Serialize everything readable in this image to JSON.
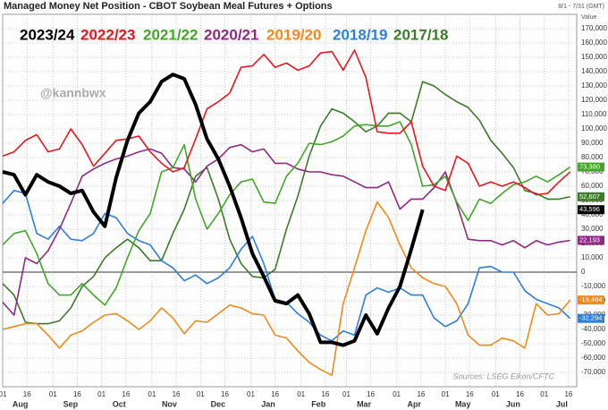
{
  "chart_data": {
    "type": "line",
    "title": "Managed Money Net Position - CBOT Soybean Meal Futures + Options",
    "range_note": "8/1 - 7/31 (GMT)",
    "axis_label": "Value",
    "watermark": "@kannbwx",
    "source": "Sources: LSEG Eikon/CFTC",
    "months": [
      "Aug",
      "Sep",
      "Oct",
      "Nov",
      "Dec",
      "Jan",
      "Feb",
      "Mar",
      "Apr",
      "May",
      "Jun",
      "Jul"
    ],
    "x": [
      0,
      7,
      14,
      21,
      28,
      35,
      42,
      49,
      56,
      63,
      70,
      77,
      84,
      91,
      98,
      105,
      112,
      119,
      126,
      133,
      140,
      147,
      154,
      161,
      168,
      175,
      182,
      189,
      196,
      203,
      210,
      217,
      224,
      231,
      238,
      245,
      252,
      259,
      266,
      273,
      280,
      287,
      294,
      301,
      308,
      315,
      322,
      329,
      336,
      343,
      350
    ],
    "xlim": [
      0,
      354
    ],
    "xticks": [
      {
        "value": 0,
        "label": "01"
      },
      {
        "value": 15,
        "label": "16"
      },
      {
        "value": 31,
        "label": "01"
      },
      {
        "value": 46,
        "label": "16"
      },
      {
        "value": 61,
        "label": "01"
      },
      {
        "value": 76,
        "label": "16"
      },
      {
        "value": 92,
        "label": "01"
      },
      {
        "value": 107,
        "label": "16"
      },
      {
        "value": 122,
        "label": "01"
      },
      {
        "value": 137,
        "label": "16"
      },
      {
        "value": 153,
        "label": "01"
      },
      {
        "value": 168,
        "label": "16"
      },
      {
        "value": 184,
        "label": "01"
      },
      {
        "value": 199,
        "label": "16"
      },
      {
        "value": 212,
        "label": "01"
      },
      {
        "value": 227,
        "label": "16"
      },
      {
        "value": 243,
        "label": "01"
      },
      {
        "value": 258,
        "label": "16"
      },
      {
        "value": 273,
        "label": "01"
      },
      {
        "value": 288,
        "label": "16"
      },
      {
        "value": 304,
        "label": "01"
      },
      {
        "value": 319,
        "label": "16"
      },
      {
        "value": 334,
        "label": "01"
      },
      {
        "value": 349,
        "label": "16"
      }
    ],
    "ylim": [
      -80000,
      180000
    ],
    "yticks": [
      {
        "value": -70000,
        "label": "-70,000"
      },
      {
        "value": -60000,
        "label": "-60,000"
      },
      {
        "value": -50000,
        "label": "-50,000"
      },
      {
        "value": -40000,
        "label": "-40,000"
      },
      {
        "value": -30000,
        "label": "-30,000"
      },
      {
        "value": -20000,
        "label": "-20,000"
      },
      {
        "value": -10000,
        "label": "-10,000"
      },
      0,
      {
        "value": 10000,
        "label": "10,000"
      },
      {
        "value": 20000,
        "label": "20,000"
      },
      {
        "value": 30000,
        "label": "30,000"
      },
      {
        "value": 40000,
        "label": "40,000"
      },
      {
        "value": 50000,
        "label": "50,000"
      },
      {
        "value": 60000,
        "label": "60,000"
      },
      {
        "value": 70000,
        "label": "70,000"
      },
      {
        "value": 80000,
        "label": "80,000"
      },
      {
        "value": 90000,
        "label": "90,000"
      },
      {
        "value": 100000,
        "label": "100,000"
      },
      {
        "value": 110000,
        "label": "110,000"
      },
      {
        "value": 120000,
        "label": "120,000"
      },
      {
        "value": 130000,
        "label": "130,000"
      },
      {
        "value": 140000,
        "label": "140,000"
      },
      {
        "value": 150000,
        "label": "150,000"
      },
      {
        "value": 160000,
        "label": "160,000"
      },
      {
        "value": 170000,
        "label": "170,000"
      }
    ],
    "grid": true,
    "series": [
      {
        "name": "2023/24",
        "color": "#000000",
        "width": 4,
        "end_label": "43,596",
        "values": [
          70000,
          68000,
          54000,
          68000,
          63000,
          60000,
          55000,
          57000,
          42000,
          32000,
          66000,
          92000,
          111000,
          119000,
          133000,
          138000,
          135000,
          117000,
          93000,
          79000,
          60000,
          38000,
          13000,
          -3000,
          -20000,
          -22000,
          -16000,
          -29000,
          -49000,
          -49000,
          -51000,
          -48000,
          -30000,
          -43000,
          -25000,
          -10000,
          16000,
          43596,
          null,
          null,
          null,
          null,
          null,
          null,
          null,
          null,
          null,
          null,
          null,
          null,
          null
        ]
      },
      {
        "name": "2022/23",
        "color": "#e8171f",
        "width": 1.6,
        "values": [
          81000,
          84000,
          92000,
          96000,
          84000,
          86000,
          100000,
          89000,
          74000,
          83000,
          92000,
          93000,
          95000,
          84000,
          76000,
          70000,
          73000,
          93000,
          114000,
          119000,
          125000,
          143000,
          144000,
          152000,
          143000,
          146000,
          141000,
          144000,
          153000,
          154000,
          141000,
          155000,
          136000,
          98000,
          97000,
          97000,
          105000,
          74000,
          60000,
          57000,
          81000,
          76000,
          60000,
          63000,
          60000,
          63000,
          59000,
          54000,
          55000,
          63000,
          70000
        ]
      },
      {
        "name": "2021/22",
        "color": "#45a52b",
        "width": 1.6,
        "end_label": "73,380",
        "values": [
          19000,
          27000,
          29000,
          13000,
          -8000,
          -16000,
          -16000,
          -8000,
          -16000,
          -23000,
          -11000,
          10000,
          29000,
          41000,
          70000,
          73000,
          89000,
          51000,
          30000,
          41000,
          54000,
          63000,
          65000,
          49000,
          48000,
          67000,
          76000,
          90000,
          89000,
          91000,
          95000,
          102000,
          103000,
          102000,
          102000,
          105000,
          89000,
          60000,
          61000,
          67000,
          49000,
          36000,
          51000,
          48000,
          55000,
          61000,
          63000,
          67000,
          63000,
          68000,
          73380
        ]
      },
      {
        "name": "2020/21",
        "color": "#8e2a82",
        "width": 1.6,
        "end_label": "22,193",
        "values": [
          -21000,
          -30000,
          10000,
          6000,
          15000,
          30000,
          48000,
          67000,
          72000,
          76000,
          79000,
          81000,
          84000,
          86000,
          83000,
          73000,
          72000,
          63000,
          74000,
          79000,
          87000,
          89000,
          84000,
          86000,
          76000,
          76000,
          72000,
          70000,
          70000,
          68000,
          67000,
          63000,
          59000,
          59000,
          63000,
          44000,
          51000,
          51000,
          59000,
          70000,
          48000,
          23000,
          22000,
          22000,
          19000,
          22000,
          17000,
          22000,
          19000,
          21000,
          22193
        ]
      },
      {
        "name": "2019/20",
        "color": "#f08a1c",
        "width": 1.6,
        "end_label": "-19,464",
        "values": [
          -40000,
          -38000,
          -36000,
          -36000,
          -44000,
          -53000,
          -44000,
          -41000,
          -35000,
          -30000,
          -29000,
          -34000,
          -40000,
          -34000,
          -25000,
          -32000,
          -43000,
          -34000,
          -35000,
          -29000,
          -23000,
          -25000,
          -29000,
          -30000,
          -44000,
          -46000,
          -55000,
          -63000,
          -68000,
          -72000,
          -22000,
          3000,
          29000,
          49000,
          38000,
          19000,
          3000,
          -4000,
          -8000,
          -10000,
          -22000,
          -44000,
          -51000,
          -51000,
          -46000,
          -48000,
          -53000,
          -22000,
          -30000,
          -29000,
          -19464
        ]
      },
      {
        "name": "2018/19",
        "color": "#2f7fd8",
        "width": 1.6,
        "end_label": "-32,294",
        "values": [
          48000,
          57000,
          55000,
          27000,
          23000,
          32000,
          23000,
          22000,
          27000,
          41000,
          38000,
          27000,
          22000,
          19000,
          8000,
          3000,
          -6000,
          -2000,
          -8000,
          -4000,
          3000,
          16000,
          25000,
          6000,
          -19000,
          -21000,
          -29000,
          -35000,
          -44000,
          -48000,
          -41000,
          -44000,
          -16000,
          -11000,
          -14000,
          -11000,
          -16000,
          -16000,
          -32000,
          -38000,
          -34000,
          -22000,
          3000,
          4000,
          0,
          0,
          -13000,
          -19000,
          -22000,
          -25000,
          -32294
        ]
      },
      {
        "name": "2017/18",
        "color": "#3d7a2a",
        "width": 1.6,
        "end_label": "52,607",
        "values": [
          -8000,
          -16000,
          -35000,
          -36000,
          -36000,
          -34000,
          -25000,
          -10000,
          -3000,
          10000,
          17000,
          23000,
          17000,
          8000,
          8000,
          27000,
          44000,
          67000,
          73000,
          51000,
          23000,
          6000,
          -3000,
          -4000,
          2000,
          30000,
          53000,
          81000,
          102000,
          114000,
          111000,
          105000,
          98000,
          102000,
          111000,
          111000,
          105000,
          133000,
          130000,
          124000,
          119000,
          115000,
          106000,
          92000,
          83000,
          73000,
          57000,
          55000,
          51000,
          51000,
          52607
        ]
      }
    ]
  }
}
